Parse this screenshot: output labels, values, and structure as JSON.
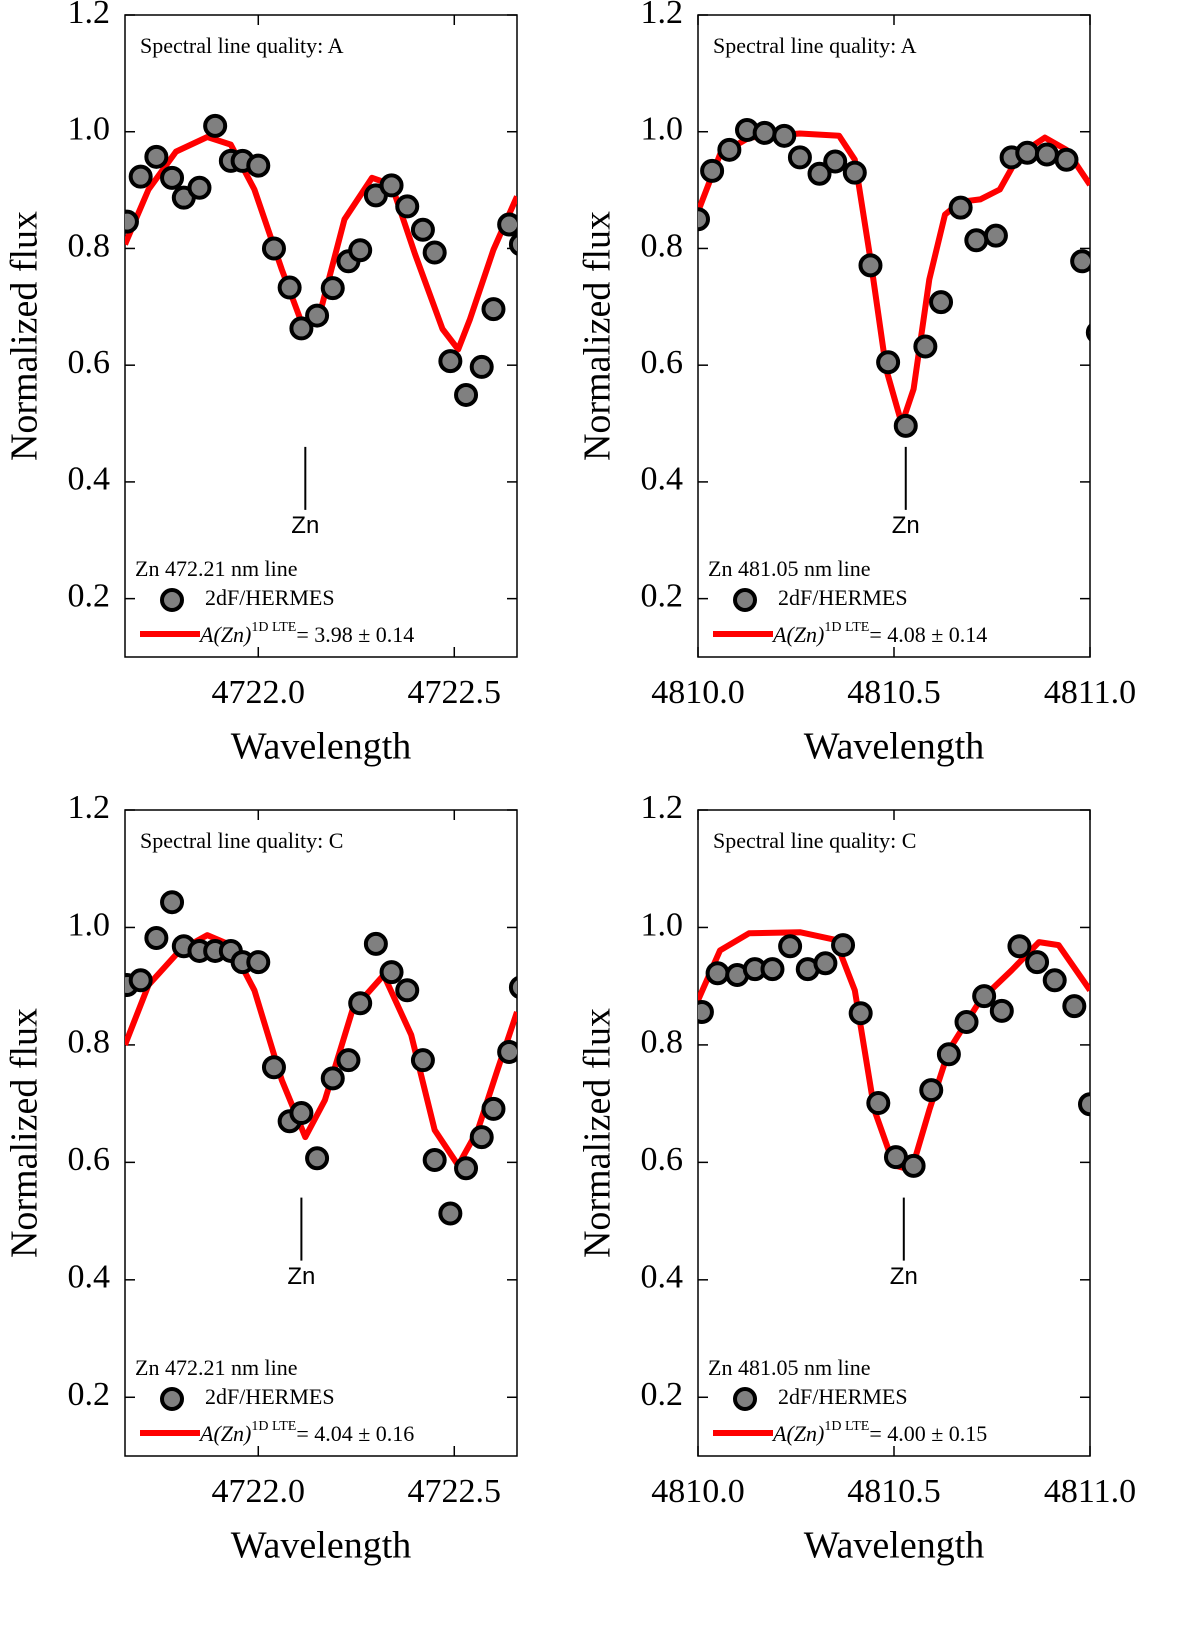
{
  "chart_data": [
    {
      "type": "scatter",
      "xlabel": "Wavelength",
      "ylabel": "Normalized flux",
      "annotation": "Spectral line quality: A",
      "legend_title": "Zn 472.21 nm line",
      "marker_label": {
        "text": "Zn",
        "x": 4722.12,
        "y": 0.46
      },
      "xlim": [
        4721.66,
        4722.66
      ],
      "ylim": [
        0.1,
        1.2
      ],
      "xticks": [
        {
          "value": 4722,
          "label": "4722.0"
        },
        4722.5
      ],
      "yticks": [
        0.2,
        0.4,
        0.6,
        0.8,
        {
          "value": 1,
          "label": "1.0"
        },
        1.2
      ],
      "series": [
        {
          "name": "2dF/HERMES",
          "color": "#808080",
          "style": "points",
          "x": [
            4721.665,
            4721.7,
            4721.74,
            4721.78,
            4721.81,
            4721.85,
            4721.89,
            4721.93,
            4721.96,
            4722.0,
            4722.04,
            4722.08,
            4722.11,
            4722.15,
            4722.19,
            4722.23,
            4722.26,
            4722.3,
            4722.34,
            4722.38,
            4722.42,
            4722.45,
            4722.49,
            4722.53,
            4722.57,
            4722.6,
            4722.64,
            4722.67
          ],
          "values": [
            0.846,
            0.923,
            0.957,
            0.921,
            0.887,
            0.904,
            1.01,
            0.95,
            0.95,
            0.942,
            0.8,
            0.733,
            0.663,
            0.685,
            0.732,
            0.778,
            0.797,
            0.891,
            0.908,
            0.872,
            0.832,
            0.793,
            0.607,
            0.549,
            0.597,
            0.696,
            0.841,
            0.807
          ]
        },
        {
          "name": "A(Zn)",
          "name_superscript": "1D LTE",
          "name_suffix": "= 3.98 ± 0.14",
          "color": "#ff0000",
          "style": "line",
          "x": [
            4721.66,
            4721.72,
            4721.79,
            4721.87,
            4721.93,
            4721.99,
            4722.06,
            4722.12,
            4722.16,
            4722.22,
            4722.29,
            4722.34,
            4722.4,
            4722.47,
            4722.51,
            4722.54,
            4722.6,
            4722.66
          ],
          "values": [
            0.807,
            0.901,
            0.966,
            0.991,
            0.978,
            0.901,
            0.764,
            0.656,
            0.696,
            0.85,
            0.921,
            0.909,
            0.79,
            0.662,
            0.627,
            0.679,
            0.798,
            0.889
          ]
        }
      ]
    },
    {
      "type": "scatter",
      "xlabel": "Wavelength",
      "ylabel": "Normalized flux",
      "annotation": "Spectral line quality: A",
      "legend_title": "Zn 481.05 nm line",
      "marker_label": {
        "text": "Zn",
        "x": 4810.53,
        "y": 0.46
      },
      "xlim": [
        4810,
        4811
      ],
      "ylim": [
        0.1,
        1.2
      ],
      "xticks": [
        {
          "value": 4810,
          "label": "4810.0"
        },
        4810.5,
        {
          "value": 4811,
          "label": "4811.0"
        }
      ],
      "yticks": [
        0.2,
        0.4,
        0.6,
        0.8,
        {
          "value": 1,
          "label": "1.0"
        },
        1.2
      ],
      "series": [
        {
          "name": "2dF/HERMES",
          "color": "#808080",
          "style": "points",
          "x": [
            4810.0,
            4810.036,
            4810.08,
            4810.125,
            4810.17,
            4810.22,
            4810.26,
            4810.31,
            4810.35,
            4810.4,
            4810.44,
            4810.485,
            4810.53,
            4810.58,
            4810.62,
            4810.67,
            4810.71,
            4810.76,
            4810.8,
            4810.84,
            4810.89,
            4810.94,
            4810.98,
            4811.02
          ],
          "values": [
            0.85,
            0.933,
            0.969,
            1.003,
            0.998,
            0.993,
            0.956,
            0.928,
            0.949,
            0.93,
            0.771,
            0.605,
            0.496,
            0.632,
            0.708,
            0.87,
            0.814,
            0.822,
            0.956,
            0.964,
            0.961,
            0.952,
            0.778,
            0.656
          ]
        },
        {
          "name": "A(Zn)",
          "name_superscript": "1D LTE",
          "name_suffix": "= 4.08 ± 0.14",
          "color": "#ff0000",
          "style": "line",
          "x": [
            4810.0,
            4810.056,
            4810.13,
            4810.26,
            4810.36,
            4810.4,
            4810.44,
            4810.48,
            4810.52,
            4810.55,
            4810.59,
            4810.63,
            4810.67,
            4810.72,
            4810.77,
            4810.82,
            4810.885,
            4810.94,
            4811.0
          ],
          "values": [
            0.863,
            0.961,
            0.99,
            0.997,
            0.993,
            0.952,
            0.781,
            0.593,
            0.499,
            0.559,
            0.747,
            0.858,
            0.88,
            0.884,
            0.901,
            0.961,
            0.99,
            0.969,
            0.909
          ]
        }
      ]
    },
    {
      "type": "scatter",
      "xlabel": "Wavelength",
      "ylabel": "Normalized flux",
      "annotation": "Spectral line quality: C",
      "legend_title": "Zn 472.21 nm line",
      "marker_label": {
        "text": "Zn",
        "x": 4722.11,
        "y": 0.54
      },
      "xlim": [
        4721.66,
        4722.66
      ],
      "ylim": [
        0.1,
        1.2
      ],
      "xticks": [
        {
          "value": 4722,
          "label": "4722.0"
        },
        4722.5
      ],
      "yticks": [
        0.2,
        0.4,
        0.6,
        0.8,
        {
          "value": 1,
          "label": "1.0"
        },
        1.2
      ],
      "series": [
        {
          "name": "2dF/HERMES",
          "color": "#808080",
          "style": "points",
          "x": [
            4721.665,
            4721.7,
            4721.74,
            4721.78,
            4721.81,
            4721.85,
            4721.89,
            4721.93,
            4721.96,
            4722.0,
            4722.04,
            4722.08,
            4722.11,
            4722.15,
            4722.19,
            4722.23,
            4722.26,
            4722.3,
            4722.34,
            4722.38,
            4722.42,
            4722.45,
            4722.49,
            4722.53,
            4722.57,
            4722.6,
            4722.64,
            4722.67
          ],
          "values": [
            0.902,
            0.91,
            0.982,
            1.043,
            0.968,
            0.96,
            0.96,
            0.96,
            0.941,
            0.941,
            0.762,
            0.67,
            0.684,
            0.607,
            0.743,
            0.774,
            0.871,
            0.972,
            0.924,
            0.893,
            0.774,
            0.604,
            0.513,
            0.59,
            0.643,
            0.691,
            0.788,
            0.898
          ]
        },
        {
          "name": "A(Zn)",
          "name_superscript": "1D LTE",
          "name_suffix": "= 4.04 ± 0.16",
          "color": "#ff0000",
          "style": "line",
          "x": [
            4721.66,
            4721.72,
            4721.8,
            4721.87,
            4721.93,
            4721.99,
            4722.06,
            4722.12,
            4722.17,
            4722.24,
            4722.32,
            4722.39,
            4722.45,
            4722.51,
            4722.56,
            4722.61,
            4722.66
          ],
          "values": [
            0.8,
            0.902,
            0.961,
            0.987,
            0.97,
            0.893,
            0.74,
            0.643,
            0.706,
            0.859,
            0.919,
            0.817,
            0.655,
            0.595,
            0.655,
            0.757,
            0.856
          ]
        }
      ]
    },
    {
      "type": "scatter",
      "xlabel": "Wavelength",
      "ylabel": "Normalized flux",
      "annotation": "Spectral line quality: C",
      "legend_title": "Zn 481.05 nm line",
      "marker_label": {
        "text": "Zn",
        "x": 4810.525,
        "y": 0.54
      },
      "xlim": [
        4810,
        4811
      ],
      "ylim": [
        0.1,
        1.2
      ],
      "xticks": [
        {
          "value": 4810,
          "label": "4810.0"
        },
        4810.5,
        {
          "value": 4811,
          "label": "4811.0"
        }
      ],
      "yticks": [
        0.2,
        0.4,
        0.6,
        0.8,
        {
          "value": 1,
          "label": "1.0"
        },
        1.2
      ],
      "series": [
        {
          "name": "2dF/HERMES",
          "color": "#808080",
          "style": "points",
          "x": [
            4810.01,
            4810.05,
            4810.1,
            4810.145,
            4810.19,
            4810.235,
            4810.28,
            4810.325,
            4810.37,
            4810.415,
            4810.46,
            4810.505,
            4810.55,
            4810.595,
            4810.64,
            4810.685,
            4810.73,
            4810.775,
            4810.82,
            4810.865,
            4810.91,
            4810.96,
            4811.0
          ],
          "values": [
            0.856,
            0.922,
            0.919,
            0.929,
            0.929,
            0.968,
            0.929,
            0.939,
            0.97,
            0.854,
            0.701,
            0.609,
            0.594,
            0.723,
            0.784,
            0.839,
            0.883,
            0.858,
            0.968,
            0.941,
            0.91,
            0.866,
            0.699
          ]
        },
        {
          "name": "A(Zn)",
          "name_superscript": "1D LTE",
          "name_suffix": "= 4.00 ± 0.15",
          "color": "#ff0000",
          "style": "line",
          "x": [
            4810.0,
            4810.056,
            4810.13,
            4810.26,
            4810.35,
            4810.4,
            4810.45,
            4810.5,
            4810.545,
            4810.59,
            4810.64,
            4810.72,
            4810.8,
            4810.87,
            4810.92,
            4811.0
          ],
          "values": [
            0.876,
            0.961,
            0.99,
            0.992,
            0.979,
            0.893,
            0.689,
            0.595,
            0.587,
            0.689,
            0.791,
            0.876,
            0.927,
            0.975,
            0.97,
            0.893
          ]
        }
      ]
    }
  ]
}
